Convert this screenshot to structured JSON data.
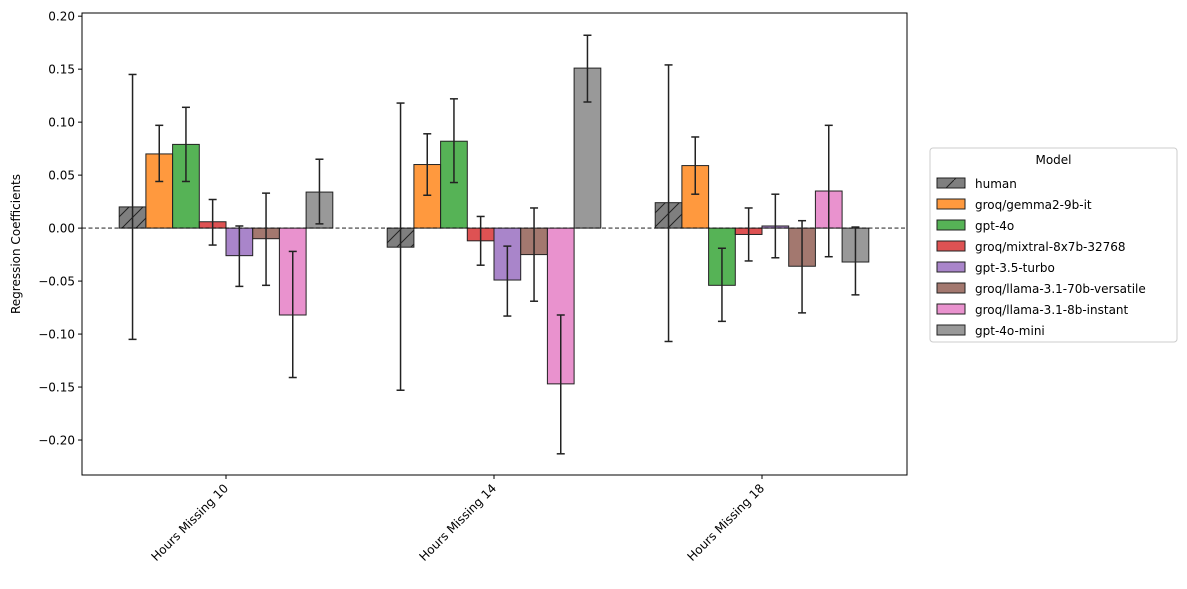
{
  "chart_data": {
    "type": "bar",
    "title": "",
    "xlabel": "",
    "ylabel": "Regression Coefficients",
    "ylim": [
      -0.233,
      0.203
    ],
    "yticks": [
      -0.2,
      -0.15,
      -0.1,
      -0.05,
      0.0,
      0.05,
      0.1,
      0.15,
      0.2
    ],
    "ytick_labels": [
      "−0.20",
      "−0.15",
      "−0.10",
      "−0.05",
      "0.00",
      "0.05",
      "0.10",
      "0.15",
      "0.20"
    ],
    "categories": [
      "Hours Missing 10",
      "Hours Missing 14",
      "Hours Missing 18"
    ],
    "zero_line": "dashed",
    "grid": false,
    "legend": {
      "title": "Model",
      "position": "right"
    },
    "series": [
      {
        "name": "human",
        "color": "#7f7f7f",
        "hatch": "diagonal",
        "values": [
          0.02,
          -0.018,
          0.024
        ],
        "ci_low": [
          -0.105,
          -0.153,
          -0.107
        ],
        "ci_high": [
          0.145,
          0.118,
          0.154
        ]
      },
      {
        "name": "groq/gemma2-9b-it",
        "color": "#ff7f0e",
        "hatch": "",
        "values": [
          0.07,
          0.06,
          0.059
        ],
        "ci_low": [
          0.044,
          0.031,
          0.032
        ],
        "ci_high": [
          0.097,
          0.089,
          0.086
        ]
      },
      {
        "name": "gpt-4o",
        "color": "#2ca02c",
        "hatch": "",
        "values": [
          0.079,
          0.082,
          -0.054
        ],
        "ci_low": [
          0.044,
          0.043,
          -0.088
        ],
        "ci_high": [
          0.114,
          0.122,
          -0.019
        ]
      },
      {
        "name": "groq/mixtral-8x7b-32768",
        "color": "#d62728",
        "hatch": "",
        "values": [
          0.006,
          -0.012,
          -0.006
        ],
        "ci_low": [
          -0.016,
          -0.035,
          -0.031
        ],
        "ci_high": [
          0.027,
          0.011,
          0.019
        ]
      },
      {
        "name": "gpt-3.5-turbo",
        "color": "#9467bd",
        "hatch": "",
        "values": [
          -0.026,
          -0.049,
          0.002
        ],
        "ci_low": [
          -0.055,
          -0.083,
          -0.028
        ],
        "ci_high": [
          0.002,
          -0.017,
          0.032
        ]
      },
      {
        "name": "groq/llama-3.1-70b-versatile",
        "color": "#8c564b",
        "hatch": "",
        "values": [
          -0.01,
          -0.025,
          -0.036
        ],
        "ci_low": [
          -0.054,
          -0.069,
          -0.08
        ],
        "ci_high": [
          0.033,
          0.019,
          0.007
        ]
      },
      {
        "name": "groq/llama-3.1-8b-instant",
        "color": "#e377c2",
        "hatch": "",
        "values": [
          -0.082,
          -0.147,
          0.035
        ],
        "ci_low": [
          -0.141,
          -0.213,
          -0.027
        ],
        "ci_high": [
          -0.022,
          -0.082,
          0.097
        ]
      },
      {
        "name": "gpt-4o-mini",
        "color": "#7f7f7f",
        "hatch": "",
        "values": [
          0.034,
          0.151,
          -0.032
        ],
        "ci_low": [
          0.004,
          0.119,
          -0.063
        ],
        "ci_high": [
          0.065,
          0.182,
          0.001
        ]
      }
    ]
  }
}
